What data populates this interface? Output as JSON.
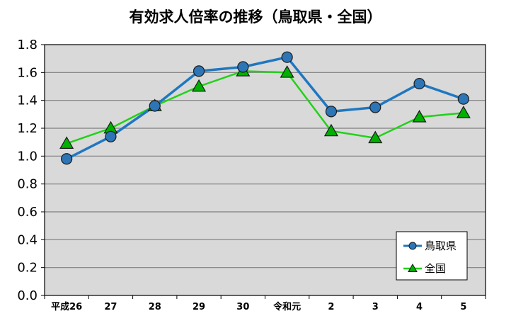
{
  "chart_data": {
    "type": "line",
    "title": "有効求人倍率の推移（鳥取県・全国）",
    "xlabel": "",
    "ylabel": "",
    "categories": [
      "平成26",
      "27",
      "28",
      "29",
      "30",
      "令和元",
      "2",
      "3",
      "4",
      "5"
    ],
    "ylim": [
      0.0,
      1.8
    ],
    "yticks": [
      "0.0",
      "0.2",
      "0.4",
      "0.6",
      "0.8",
      "1.0",
      "1.2",
      "1.4",
      "1.6",
      "1.8"
    ],
    "grid": true,
    "legend_position": "bottom-right",
    "series": [
      {
        "name": "鳥取県",
        "values": [
          0.98,
          1.14,
          1.36,
          1.61,
          1.64,
          1.71,
          1.32,
          1.35,
          1.52,
          1.41
        ],
        "color": "#1F77C0",
        "marker": "circle",
        "marker_color": "#2E75B6"
      },
      {
        "name": "全国",
        "values": [
          1.09,
          1.2,
          1.36,
          1.5,
          1.61,
          1.6,
          1.18,
          1.13,
          1.28,
          1.31
        ],
        "color": "#22D11A",
        "marker": "triangle",
        "marker_color": "#00B000"
      }
    ],
    "plot_background": "#D9D9D9",
    "grid_color": "#7F7F7F"
  }
}
